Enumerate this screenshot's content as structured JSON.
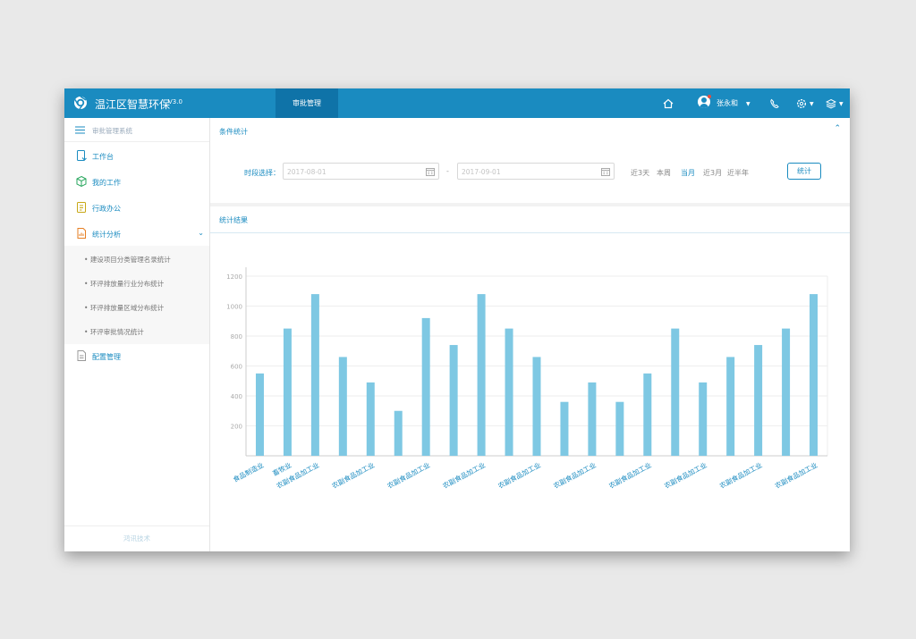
{
  "app": {
    "title": "温江区智慧环保",
    "version": "V3.0"
  },
  "topnav": {
    "active_tab": "审批管理"
  },
  "user": {
    "name": "张永和"
  },
  "colors": {
    "primary": "#1a8bc0",
    "nav_active": "#0f73a8",
    "bar": "#7ec8e3"
  },
  "icons": [
    "home-icon",
    "phone-icon",
    "gear-icon",
    "layers-icon",
    "menu-icon"
  ],
  "sidebar": {
    "header": "审批管理系统",
    "items": [
      {
        "label": "工作台",
        "icon": "tablet-icon"
      },
      {
        "label": "我的工作",
        "icon": "cube-icon"
      },
      {
        "label": "行政办公",
        "icon": "document-icon"
      },
      {
        "label": "统计分析",
        "icon": "chart-doc-icon"
      },
      {
        "label": "配置管理",
        "icon": "file-icon"
      }
    ],
    "subitems": [
      "建设项目分类管理名录统计",
      "环评排放量行业分布统计",
      "环评排放量区域分布统计",
      "环评审批情况统计"
    ],
    "footer": "鸿讯技术"
  },
  "filter": {
    "section_title": "条件统计",
    "label": "时段选择：",
    "start_date": "2017-08-01",
    "end_date": "2017-09-01",
    "separator": "-",
    "quick": [
      "近3天",
      "本周",
      "当月",
      "近3月",
      "近半年"
    ],
    "active_quick": "当月",
    "button": "统计"
  },
  "result": {
    "section_title": "统计结果"
  },
  "chart_data": {
    "type": "bar",
    "ylim": [
      0,
      1200
    ],
    "yticks": [
      200,
      400,
      600,
      800,
      1000,
      1200
    ],
    "grid": true,
    "categories": [
      "食品制造业",
      "畜牧业",
      "农副食品加工业",
      "农副食品加工业",
      "农副食品加工业",
      "农副食品加工业",
      "农副食品加工业",
      "农副食品加工业",
      "农副食品加工业",
      "农副食品加工业",
      "农副食品加工业",
      "农副食品加工业",
      "农副食品加工业",
      "农副食品加工业",
      "农副食品加工业",
      "农副食品加工业",
      "农副食品加工业",
      "农副食品加工业",
      "农副食品加工业",
      "农副食品加工业",
      "农副食品加工业"
    ],
    "labeled_indices": [
      0,
      1,
      2,
      4,
      6,
      8,
      10,
      12,
      14,
      16,
      18,
      20
    ],
    "values": [
      550,
      850,
      1080,
      660,
      490,
      300,
      920,
      740,
      1080,
      850,
      660,
      360,
      490,
      360,
      550,
      850,
      490,
      660,
      740,
      850,
      1080
    ]
  }
}
